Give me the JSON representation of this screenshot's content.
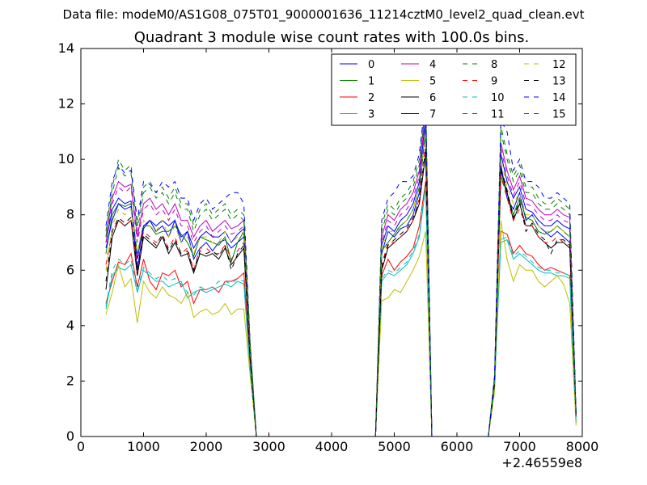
{
  "figure": {
    "suptitle": "Data file: modeM0/AS1G08_075T01_9000001636_11214cztM0_level2_quad_clean.evt"
  },
  "chart_data": {
    "type": "line",
    "title": "Quadrant 3 module wise count rates with 100.0s bins.",
    "xlabel": "",
    "ylabel": "",
    "x_offset_label": "+2.46559e8",
    "xlim": [
      0,
      8000
    ],
    "ylim": [
      0,
      14
    ],
    "xticks": [
      0,
      1000,
      2000,
      3000,
      4000,
      5000,
      6000,
      7000,
      8000
    ],
    "yticks": [
      0,
      2,
      4,
      6,
      8,
      10,
      12,
      14
    ],
    "grid": false,
    "legend_position": "top-right",
    "legend_columns": 4,
    "x": [
      400,
      500,
      600,
      700,
      800,
      900,
      1000,
      1100,
      1200,
      1300,
      1400,
      1500,
      1600,
      1700,
      1800,
      1900,
      2000,
      2100,
      2200,
      2300,
      2400,
      2500,
      2600,
      2700,
      2800,
      2900,
      3000,
      3500,
      4000,
      4500,
      4700,
      4800,
      4900,
      5000,
      5100,
      5200,
      5300,
      5400,
      5500,
      5600,
      5700,
      6000,
      6500,
      6600,
      6700,
      6800,
      6900,
      7000,
      7100,
      7200,
      7300,
      7400,
      7500,
      7600,
      7700,
      7800,
      7900
    ],
    "series": [
      {
        "name": "0",
        "color": "#0000ff",
        "dashed": false,
        "values": [
          7.0,
          8.2,
          8.6,
          8.4,
          8.5,
          6.0,
          7.5,
          7.8,
          7.4,
          7.6,
          7.2,
          7.8,
          7.0,
          7.4,
          6.4,
          6.8,
          7.0,
          6.7,
          7.0,
          7.1,
          6.8,
          7.0,
          7.2,
          3.0,
          0.0,
          0.0,
          0.0,
          0.0,
          0.0,
          0.0,
          0.0,
          6.6,
          7.4,
          7.2,
          7.5,
          7.6,
          8.0,
          8.8,
          11.2,
          0.0,
          0.0,
          0.0,
          0.0,
          2.0,
          9.8,
          8.6,
          8.2,
          8.8,
          7.8,
          8.0,
          7.6,
          7.4,
          7.2,
          7.4,
          7.2,
          7.0,
          0.8
        ]
      },
      {
        "name": "1",
        "color": "#008000",
        "dashed": false,
        "values": [
          6.6,
          8.0,
          8.4,
          8.3,
          8.4,
          6.6,
          7.6,
          7.6,
          7.3,
          7.4,
          7.4,
          7.6,
          7.3,
          7.0,
          6.5,
          7.2,
          7.1,
          7.0,
          6.9,
          7.2,
          6.3,
          7.0,
          7.4,
          3.0,
          0.0,
          0.0,
          0.0,
          0.0,
          0.0,
          0.0,
          0.0,
          6.7,
          7.0,
          7.3,
          7.6,
          7.8,
          8.2,
          9.0,
          11.0,
          0.0,
          0.0,
          0.0,
          0.0,
          2.0,
          9.4,
          8.8,
          8.0,
          8.6,
          7.9,
          7.8,
          7.4,
          7.3,
          7.4,
          7.6,
          7.4,
          7.2,
          0.8
        ]
      },
      {
        "name": "2",
        "color": "#ff0000",
        "dashed": false,
        "values": [
          4.8,
          5.6,
          6.3,
          6.2,
          6.6,
          5.4,
          6.4,
          5.6,
          5.3,
          5.9,
          5.8,
          6.0,
          5.4,
          5.6,
          4.8,
          5.3,
          5.3,
          5.4,
          5.2,
          5.6,
          5.6,
          5.7,
          5.9,
          2.6,
          0.0,
          0.0,
          0.0,
          0.0,
          0.0,
          0.0,
          0.0,
          5.8,
          6.4,
          6.0,
          6.3,
          6.5,
          6.8,
          7.6,
          9.2,
          0.0,
          0.0,
          0.0,
          0.0,
          1.8,
          7.4,
          7.3,
          6.6,
          6.9,
          6.6,
          6.5,
          6.2,
          6.0,
          6.1,
          6.0,
          5.9,
          5.8,
          0.5
        ]
      },
      {
        "name": "3",
        "color": "#00bfbf",
        "dashed": false,
        "values": [
          4.6,
          5.8,
          6.1,
          6.0,
          6.2,
          5.2,
          6.0,
          5.8,
          5.6,
          5.6,
          5.4,
          5.5,
          5.6,
          5.0,
          5.2,
          5.3,
          5.2,
          5.3,
          5.4,
          5.5,
          5.4,
          5.6,
          5.5,
          2.4,
          0.0,
          0.0,
          0.0,
          0.0,
          0.0,
          0.0,
          0.0,
          5.6,
          5.9,
          5.8,
          6.0,
          6.2,
          6.6,
          7.2,
          9.0,
          0.0,
          0.0,
          0.0,
          0.0,
          1.8,
          7.0,
          7.1,
          6.4,
          6.6,
          6.4,
          6.2,
          6.0,
          5.9,
          5.9,
          5.8,
          5.8,
          5.7,
          0.5
        ]
      },
      {
        "name": "4",
        "color": "#bf00bf",
        "dashed": false,
        "values": [
          7.2,
          8.6,
          9.2,
          9.0,
          9.1,
          7.2,
          8.4,
          8.6,
          8.2,
          8.4,
          8.0,
          8.4,
          7.8,
          7.8,
          7.2,
          7.6,
          7.8,
          7.4,
          7.6,
          7.8,
          7.5,
          7.6,
          7.8,
          3.2,
          0.0,
          0.0,
          0.0,
          0.0,
          0.0,
          0.0,
          0.0,
          7.2,
          8.0,
          7.8,
          8.2,
          8.4,
          8.8,
          9.6,
          12.0,
          0.0,
          0.0,
          0.0,
          0.0,
          2.1,
          10.6,
          9.6,
          8.9,
          9.4,
          8.6,
          8.5,
          8.2,
          8.0,
          8.0,
          8.2,
          8.0,
          7.9,
          0.8
        ]
      },
      {
        "name": "5",
        "color": "#bfbf00",
        "dashed": false,
        "values": [
          4.4,
          5.2,
          6.2,
          5.4,
          5.7,
          4.1,
          5.6,
          5.2,
          5.0,
          5.4,
          5.1,
          5.0,
          4.8,
          5.2,
          4.3,
          4.5,
          4.6,
          4.4,
          4.5,
          4.8,
          4.4,
          4.6,
          4.6,
          2.2,
          0.0,
          0.0,
          0.0,
          0.0,
          0.0,
          0.0,
          0.0,
          4.9,
          5.0,
          5.3,
          5.2,
          5.6,
          6.0,
          6.5,
          7.4,
          0.0,
          0.0,
          0.0,
          0.0,
          1.6,
          7.8,
          6.4,
          5.6,
          6.2,
          6.0,
          6.0,
          5.6,
          5.4,
          5.6,
          5.8,
          5.5,
          4.8,
          0.4
        ]
      },
      {
        "name": "6",
        "color": "#000000",
        "dashed": false,
        "values": [
          5.3,
          7.2,
          7.8,
          7.6,
          7.8,
          5.8,
          7.2,
          7.0,
          6.8,
          7.2,
          6.6,
          7.0,
          6.5,
          6.6,
          5.9,
          6.6,
          6.5,
          6.6,
          6.4,
          6.8,
          6.2,
          6.5,
          6.8,
          2.8,
          0.0,
          0.0,
          0.0,
          0.0,
          0.0,
          0.0,
          0.0,
          6.0,
          6.8,
          7.0,
          7.2,
          7.4,
          7.8,
          8.4,
          10.2,
          0.0,
          0.0,
          0.0,
          0.0,
          1.9,
          9.6,
          8.8,
          7.8,
          8.4,
          7.6,
          7.6,
          7.2,
          7.0,
          6.8,
          7.0,
          7.0,
          6.8,
          0.7
        ]
      },
      {
        "name": "7",
        "color": "#0000ff",
        "dashed": false,
        "values": [
          6.8,
          7.8,
          8.4,
          8.2,
          8.3,
          6.4,
          7.6,
          7.8,
          7.6,
          7.8,
          7.6,
          7.8,
          7.2,
          7.4,
          6.8,
          7.2,
          7.4,
          7.2,
          7.2,
          7.4,
          7.0,
          7.3,
          7.5,
          3.0,
          0.0,
          0.0,
          0.0,
          0.0,
          0.0,
          0.0,
          0.0,
          6.9,
          7.6,
          7.4,
          7.8,
          8.0,
          8.4,
          9.2,
          11.6,
          0.0,
          0.0,
          0.0,
          0.0,
          2.0,
          10.2,
          9.2,
          8.6,
          9.0,
          8.2,
          8.1,
          7.8,
          7.6,
          7.6,
          7.8,
          7.6,
          7.5,
          0.8
        ]
      },
      {
        "name": "8",
        "color": "#008000",
        "dashed": true,
        "values": [
          7.4,
          9.0,
          10.0,
          9.6,
          9.8,
          7.6,
          9.0,
          9.2,
          8.8,
          9.0,
          8.6,
          9.0,
          8.4,
          8.4,
          7.6,
          8.2,
          8.4,
          8.0,
          8.2,
          8.4,
          8.0,
          8.2,
          8.0,
          3.4,
          0.0,
          0.0,
          0.0,
          0.0,
          0.0,
          0.0,
          0.0,
          7.6,
          8.4,
          8.2,
          8.6,
          8.8,
          9.2,
          10.0,
          12.4,
          0.0,
          0.0,
          0.0,
          0.0,
          2.2,
          11.2,
          10.2,
          9.4,
          9.8,
          9.0,
          9.0,
          8.6,
          8.4,
          8.4,
          8.6,
          8.4,
          8.2,
          0.9
        ]
      },
      {
        "name": "9",
        "color": "#ff0000",
        "dashed": true,
        "values": [
          6.2,
          7.4,
          7.8,
          7.6,
          7.8,
          6.2,
          7.4,
          7.2,
          7.0,
          7.2,
          6.8,
          7.2,
          6.6,
          6.8,
          6.0,
          6.8,
          6.8,
          6.6,
          6.6,
          6.9,
          6.4,
          6.7,
          7.0,
          2.9,
          0.0,
          0.0,
          0.0,
          0.0,
          0.0,
          0.0,
          0.0,
          6.2,
          7.0,
          7.0,
          7.2,
          7.4,
          7.8,
          8.6,
          10.6,
          0.0,
          0.0,
          0.0,
          0.0,
          1.9,
          9.4,
          8.6,
          7.8,
          8.2,
          7.6,
          7.6,
          7.2,
          7.0,
          7.0,
          7.2,
          7.0,
          6.9,
          0.7
        ]
      },
      {
        "name": "10",
        "color": "#00bfbf",
        "dashed": true,
        "values": [
          4.7,
          6.0,
          6.4,
          6.2,
          6.4,
          5.3,
          6.1,
          5.9,
          5.7,
          5.8,
          5.6,
          5.7,
          5.5,
          5.2,
          5.1,
          5.4,
          5.3,
          5.4,
          5.6,
          5.6,
          5.5,
          5.7,
          5.6,
          2.4,
          0.0,
          0.0,
          0.0,
          0.0,
          0.0,
          0.0,
          0.0,
          5.7,
          6.0,
          5.9,
          6.1,
          6.3,
          6.7,
          7.3,
          9.1,
          0.0,
          0.0,
          0.0,
          0.0,
          1.8,
          7.1,
          7.2,
          6.5,
          6.7,
          6.5,
          6.3,
          6.1,
          6.0,
          6.0,
          5.9,
          5.9,
          5.8,
          0.5
        ]
      },
      {
        "name": "11",
        "color": "#bf00bf",
        "dashed": true,
        "values": [
          7.0,
          8.4,
          9.0,
          8.8,
          9.0,
          7.0,
          8.2,
          8.4,
          8.0,
          8.2,
          7.8,
          8.2,
          7.6,
          7.6,
          7.0,
          7.4,
          7.6,
          7.2,
          7.4,
          7.6,
          7.3,
          7.4,
          7.6,
          3.1,
          0.0,
          0.0,
          0.0,
          0.0,
          0.0,
          0.0,
          0.0,
          7.0,
          7.8,
          7.6,
          8.0,
          8.2,
          8.6,
          9.4,
          11.8,
          0.0,
          0.0,
          0.0,
          0.0,
          2.1,
          10.4,
          9.4,
          8.7,
          9.2,
          8.4,
          8.3,
          8.0,
          7.8,
          7.8,
          8.0,
          7.8,
          7.7,
          0.8
        ]
      },
      {
        "name": "12",
        "color": "#bfbf00",
        "dashed": true,
        "values": [
          6.0,
          7.6,
          8.2,
          8.0,
          8.2,
          6.6,
          7.8,
          7.6,
          7.4,
          7.8,
          7.2,
          7.6,
          7.0,
          7.2,
          6.6,
          7.2,
          7.2,
          7.0,
          7.0,
          7.4,
          7.0,
          7.2,
          7.4,
          3.0,
          0.0,
          0.0,
          0.0,
          0.0,
          0.0,
          0.0,
          0.0,
          6.8,
          7.4,
          7.4,
          7.6,
          7.8,
          8.2,
          9.0,
          11.0,
          0.0,
          0.0,
          0.0,
          0.0,
          2.0,
          10.0,
          9.0,
          8.4,
          8.8,
          8.0,
          8.0,
          7.6,
          7.4,
          7.4,
          7.6,
          7.4,
          7.2,
          0.7
        ]
      },
      {
        "name": "13",
        "color": "#000000",
        "dashed": true,
        "values": [
          5.6,
          7.4,
          7.9,
          7.7,
          7.9,
          6.0,
          7.3,
          7.1,
          6.9,
          7.3,
          6.7,
          7.1,
          6.6,
          6.7,
          6.0,
          6.7,
          6.6,
          6.7,
          6.5,
          6.9,
          6.0,
          6.6,
          6.9,
          2.8,
          0.0,
          0.0,
          0.0,
          0.0,
          0.0,
          0.0,
          0.0,
          6.1,
          6.9,
          7.1,
          7.3,
          7.5,
          7.9,
          8.5,
          10.4,
          0.0,
          0.0,
          0.0,
          0.0,
          1.9,
          9.7,
          8.9,
          7.9,
          8.5,
          7.4,
          7.7,
          7.3,
          7.1,
          6.6,
          7.1,
          7.1,
          6.9,
          0.7
        ]
      },
      {
        "name": "14",
        "color": "#0000ff",
        "dashed": true,
        "values": [
          7.6,
          9.2,
          9.8,
          9.5,
          9.6,
          7.8,
          9.2,
          9.1,
          8.8,
          9.2,
          9.0,
          9.2,
          8.6,
          8.6,
          7.8,
          8.4,
          8.6,
          8.2,
          8.4,
          8.6,
          8.8,
          8.8,
          8.4,
          3.4,
          0.0,
          0.0,
          0.0,
          0.0,
          0.0,
          0.0,
          0.0,
          7.8,
          8.6,
          8.8,
          9.2,
          9.2,
          9.4,
          10.2,
          12.2,
          0.0,
          0.0,
          0.0,
          0.0,
          2.2,
          11.4,
          11.0,
          9.6,
          10.0,
          9.2,
          9.2,
          9.0,
          8.6,
          8.6,
          8.8,
          8.6,
          8.4,
          0.9
        ]
      },
      {
        "name": "15",
        "color": "#008000",
        "dashed": true,
        "values": [
          7.2,
          8.8,
          9.7,
          9.4,
          9.5,
          7.4,
          8.8,
          9.0,
          8.6,
          8.8,
          8.4,
          8.8,
          8.2,
          8.2,
          7.4,
          8.0,
          8.2,
          7.8,
          8.0,
          8.2,
          7.8,
          8.0,
          7.8,
          3.3,
          0.0,
          0.0,
          0.0,
          0.0,
          0.0,
          0.0,
          0.0,
          7.4,
          8.2,
          8.0,
          8.4,
          8.6,
          9.0,
          9.8,
          12.0,
          0.0,
          0.0,
          0.0,
          0.0,
          2.1,
          11.0,
          10.0,
          9.2,
          9.6,
          8.8,
          8.8,
          8.4,
          8.2,
          8.2,
          8.4,
          8.2,
          8.0,
          0.9
        ]
      }
    ]
  }
}
